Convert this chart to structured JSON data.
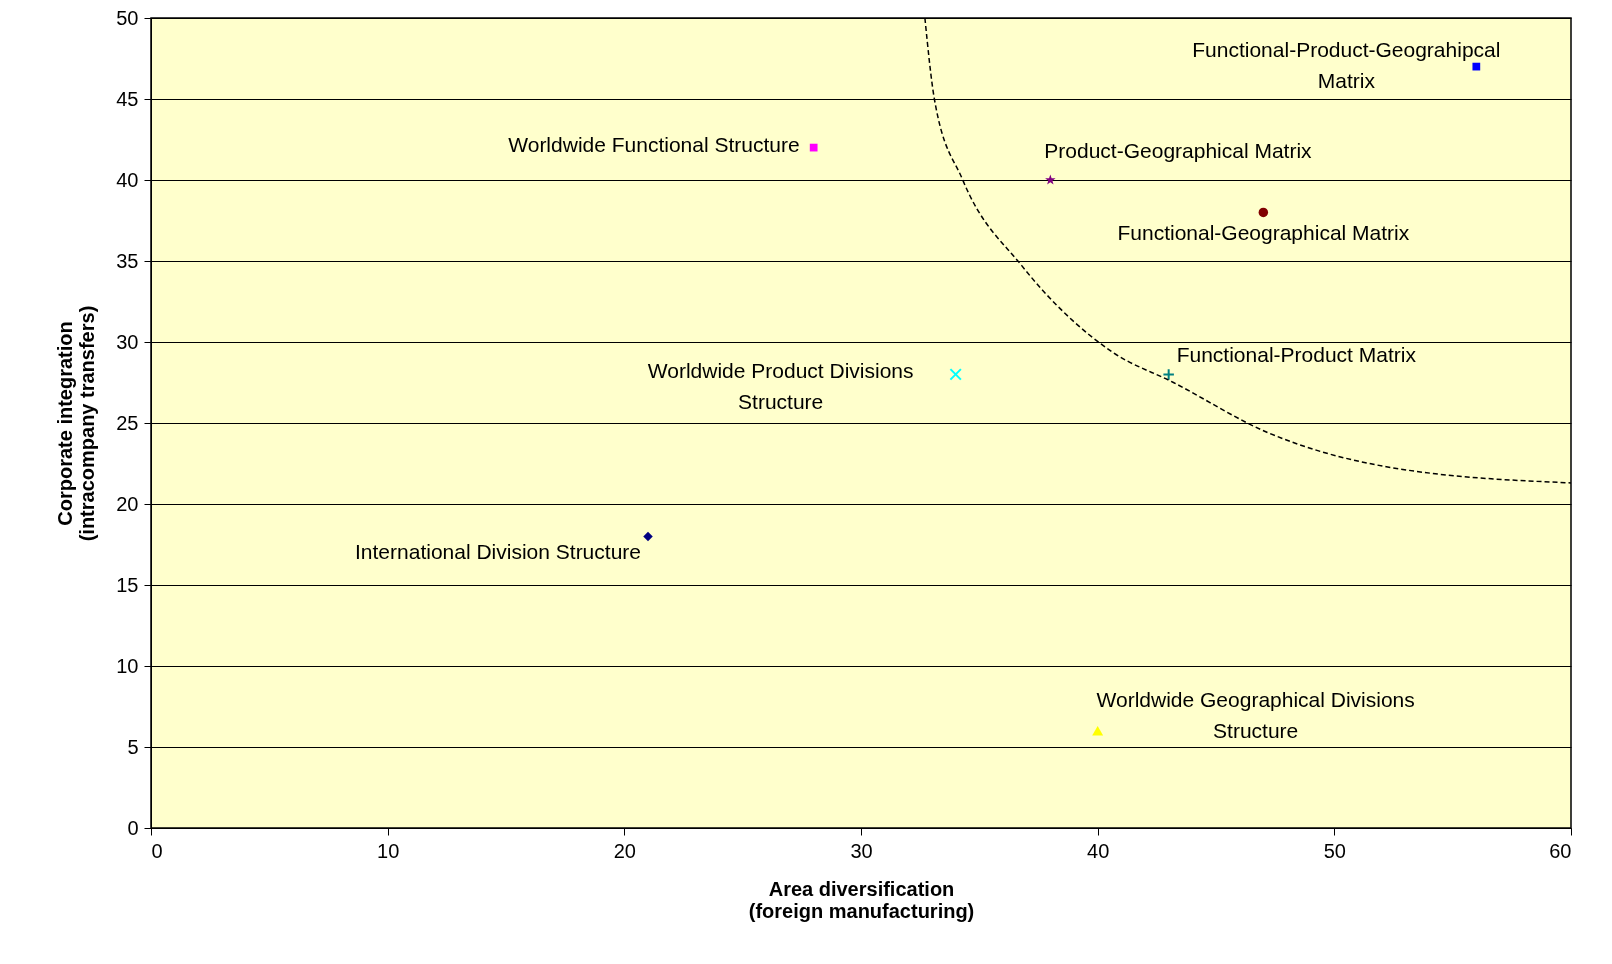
{
  "chart_data": {
    "type": "scatter",
    "xlabel": "Area diversification\n(foreign manufacturing)",
    "ylabel": "Corporate integration\n(intracompany transfers)",
    "xlim": [
      0,
      60
    ],
    "xticks": [
      0,
      10,
      20,
      30,
      40,
      50,
      60
    ],
    "ylim": [
      0,
      50
    ],
    "yticks": [
      0,
      5,
      10,
      15,
      20,
      25,
      30,
      35,
      40,
      45,
      50
    ],
    "grid": "y",
    "series": [
      {
        "name": "Worldwide Functional Structure",
        "color": "#ff00ff",
        "marker": "square",
        "x": [
          28
        ],
        "values": [
          42
        ]
      },
      {
        "name": "Product-Geographical Matrix",
        "color": "#800080",
        "marker": "star",
        "x": [
          38
        ],
        "values": [
          40
        ]
      },
      {
        "name": "Functional-Geographical Matrix",
        "color": "#800000",
        "marker": "circle",
        "x": [
          47
        ],
        "values": [
          38
        ]
      },
      {
        "name": "Functional-Product-Geograhipcal\nMatrix",
        "color": "#0000ff",
        "marker": "square",
        "x": [
          56
        ],
        "values": [
          47
        ]
      },
      {
        "name": "Functional-Product Matrix",
        "color": "#008080",
        "marker": "plus",
        "x": [
          43
        ],
        "values": [
          28
        ]
      },
      {
        "name": "Worldwide Product Divisions\nStructure",
        "color": "#00ffff",
        "marker": "cross",
        "x": [
          34
        ],
        "values": [
          28
        ]
      },
      {
        "name": "International Division Structure",
        "color": "#000080",
        "marker": "diamond",
        "x": [
          21
        ],
        "values": [
          18
        ]
      },
      {
        "name": "Worldwide Geographical Divisions\nStructure",
        "color": "#ffff00",
        "marker": "triangle",
        "x": [
          40
        ],
        "values": [
          6
        ]
      },
      {
        "type": "line",
        "color": "#000000",
        "marker": "none",
        "line_style": "dashed",
        "x": [
          32.7,
          33.1,
          34.3,
          36.8,
          40.6,
          43.2,
          47.2,
          52.2,
          60
        ],
        "values": [
          50,
          45,
          40,
          34.7,
          29.4,
          27.5,
          24.4,
          22.3,
          21.3
        ]
      }
    ]
  }
}
